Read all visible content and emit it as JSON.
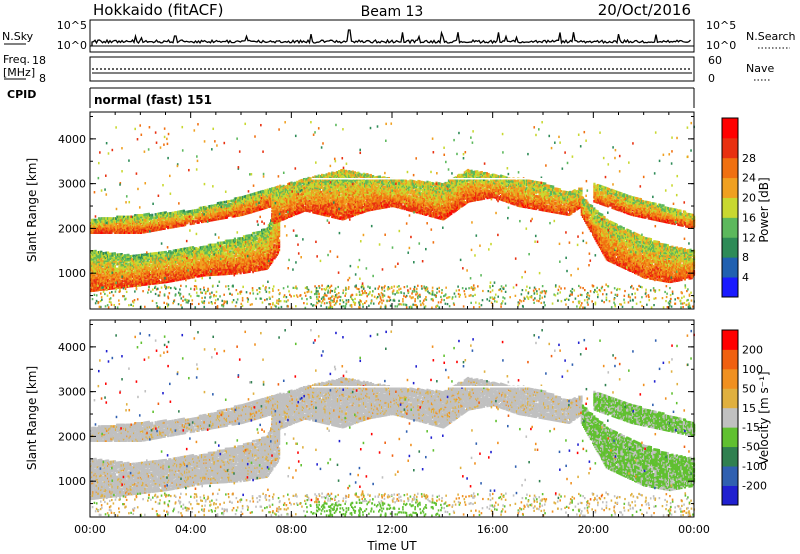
{
  "header": {
    "station": "Hokkaido (fitACF)",
    "beam": "Beam 13",
    "date": "20/Oct/2016"
  },
  "top_panels": {
    "nsky_label": "N.Sky",
    "nsearch_label": "N.Search",
    "nsky_ticks": [
      "10^5",
      "10^0"
    ],
    "freq_label": [
      "Freq.",
      "[MHz]"
    ],
    "freq_ticks": [
      "18",
      "8"
    ],
    "nave_label": "Nave",
    "nave_ticks": [
      "60",
      "0"
    ],
    "cpid_label": "CPID",
    "cpid_text": "normal (fast) 151"
  },
  "chart_data": [
    {
      "type": "heatmap",
      "name": "Power",
      "ylabel": "Slant Range [km]",
      "yticks": [
        1000,
        2000,
        3000,
        4000
      ],
      "ylim": [
        200,
        4600
      ],
      "xticks": [
        "00:00",
        "04:00",
        "08:00",
        "12:00",
        "16:00",
        "20:00",
        "00:00"
      ],
      "xlim_hours": [
        0,
        24
      ],
      "colorbar": {
        "label": "Power [dB]",
        "ticks": [
          "4",
          "8",
          "12",
          "16",
          "20",
          "24",
          "28"
        ],
        "colors": [
          "#1a1aff",
          "#2060b0",
          "#2e8b57",
          "#5cb85c",
          "#c8d830",
          "#f0a020",
          "#f07010",
          "#e83010",
          "#ff0000"
        ]
      },
      "backscatter_bands": [
        {
          "hours": [
            0,
            1.5,
            3,
            4.5,
            6,
            7,
            7.5
          ],
          "lower_km": [
            600,
            700,
            800,
            950,
            1000,
            1100,
            1500
          ],
          "upper_km": [
            1500,
            1400,
            1500,
            1600,
            1800,
            2000,
            2600
          ]
        },
        {
          "hours": [
            0,
            2,
            4,
            6,
            7.2
          ],
          "lower_km": [
            1900,
            1900,
            2100,
            2300,
            2500
          ],
          "upper_km": [
            2200,
            2300,
            2400,
            2700,
            2900
          ]
        },
        {
          "hours": [
            7.2,
            8.5,
            10,
            11,
            12,
            14,
            15,
            16,
            17,
            18,
            19,
            19.5
          ],
          "lower_km": [
            2100,
            2400,
            2200,
            2400,
            2500,
            2200,
            2600,
            2700,
            2500,
            2400,
            2300,
            2500
          ],
          "upper_km": [
            2900,
            3100,
            3300,
            3200,
            3100,
            3000,
            3300,
            3200,
            3100,
            3000,
            2800,
            2900
          ]
        },
        {
          "hours": [
            19.5,
            20.5,
            22,
            23,
            24
          ],
          "lower_km": [
            2300,
            1300,
            900,
            800,
            900
          ],
          "upper_km": [
            2700,
            2200,
            1800,
            1600,
            1500
          ]
        },
        {
          "hours": [
            20,
            21.5,
            24
          ],
          "lower_km": [
            2600,
            2300,
            2000
          ],
          "upper_km": [
            3000,
            2700,
            2300
          ]
        }
      ]
    },
    {
      "type": "heatmap",
      "name": "Velocity",
      "ylabel": "Slant Range [km]",
      "xlabel": "Time UT",
      "yticks": [
        1000,
        2000,
        3000,
        4000
      ],
      "ylim": [
        200,
        4600
      ],
      "xticks": [
        "00:00",
        "04:00",
        "08:00",
        "12:00",
        "16:00",
        "20:00",
        "00:00"
      ],
      "xlim_hours": [
        0,
        24
      ],
      "colorbar": {
        "label": "Velocity [m s⁻¹]",
        "ticks": [
          "200",
          "100",
          "50",
          "15",
          "-15",
          "-50",
          "-100",
          "-200"
        ],
        "colors": [
          "#2020d0",
          "#3060b0",
          "#308050",
          "#60c030",
          "#c0c0c0",
          "#e0b040",
          "#f09020",
          "#f06010",
          "#ff0000"
        ]
      }
    }
  ]
}
